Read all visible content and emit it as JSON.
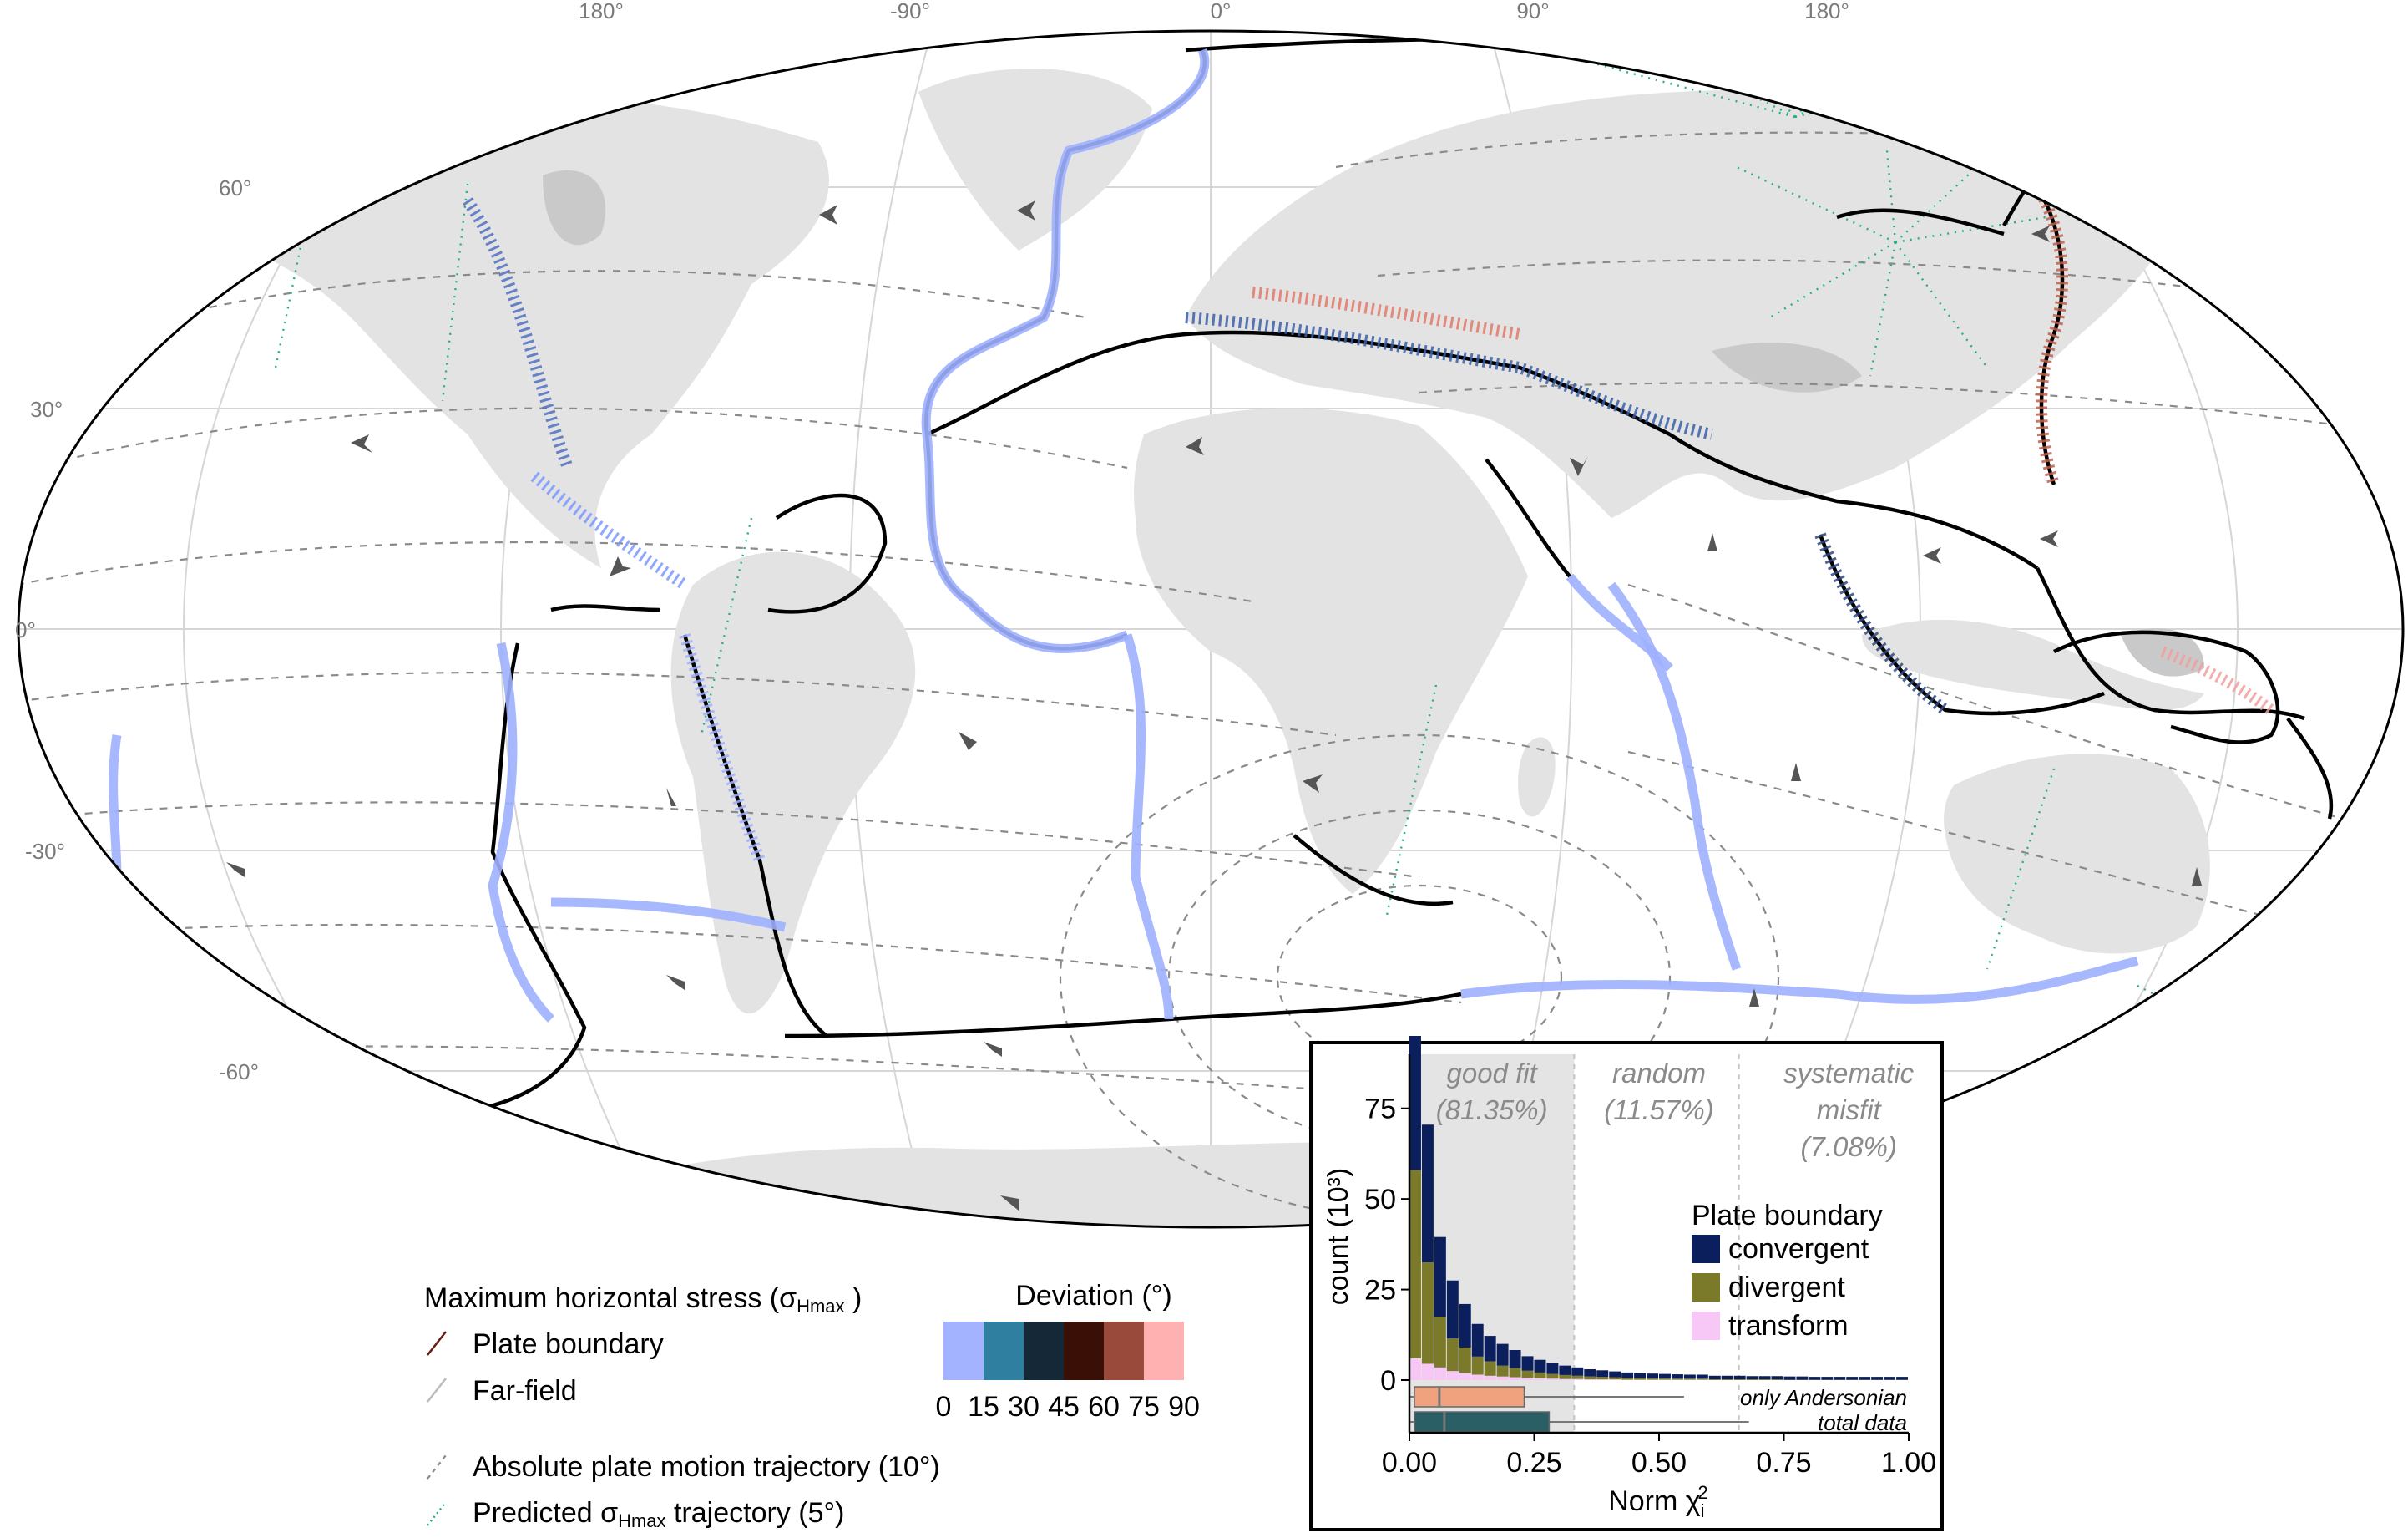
{
  "map": {
    "lon_labels": [
      "180°",
      "-90°",
      "0°",
      "90°",
      "180°"
    ],
    "lat_labels": [
      "60°",
      "30°",
      "0°",
      "-30°",
      "-60°"
    ],
    "colors": {
      "land": "#e3e3e3",
      "plate_boundary": "#000000",
      "ridge_stress": "#9fb0ff",
      "apm": "#8a8a8a",
      "predicted": "#22b08a"
    }
  },
  "legend": {
    "stress_title_main": "Maximum horizontal stress (σ",
    "stress_title_sub": "Hmax",
    "stress_title_end": " )",
    "plate_boundary": "Plate boundary",
    "far_field": "Far-field",
    "apm_label": "Absolute plate motion trajectory (10°)",
    "pred_main": "Predicted σ",
    "pred_sub": "Hmax",
    "pred_end": " trajectory (5°)",
    "deviation_title": "Deviation (°)",
    "deviation_ticks": [
      "0",
      "15",
      "30",
      "45",
      "60",
      "75",
      "90"
    ],
    "deviation_colors": [
      "#a3b3ff",
      "#2f7fa0",
      "#152838",
      "#3a0f05",
      "#9a4a3a",
      "#ffb0b0"
    ]
  },
  "chart_data": {
    "type": "bar",
    "xlabel_main": "Norm χ",
    "xlabel_sub": "i",
    "xlabel_sup": "2",
    "ylabel": "count (10³)",
    "xlim": [
      0,
      1
    ],
    "ylim": [
      0,
      95
    ],
    "xticks": [
      "0.00",
      "0.25",
      "0.50",
      "0.75",
      "1.00"
    ],
    "yticks": [
      "0",
      "25",
      "50",
      "75"
    ],
    "zones": [
      {
        "label1": "good fit",
        "label2": "(81.35%)",
        "range": [
          0,
          0.33
        ]
      },
      {
        "label1": "random",
        "label2": "(11.57%)",
        "range": [
          0.33,
          0.66
        ]
      },
      {
        "label1": "systematic",
        "label2": "misfit",
        "label3": "(7.08%)",
        "range": [
          0.66,
          1
        ]
      }
    ],
    "bin_width": 0.025,
    "series": [
      {
        "name": "convergent",
        "color": "#0b1f5c",
        "values": [
          95,
          38,
          22,
          16,
          12,
          9,
          7,
          6,
          5,
          4,
          3.5,
          3,
          2.6,
          2.3,
          2,
          1.8,
          1.6,
          1.5,
          1.4,
          1.3,
          1.2,
          1.2,
          1.1,
          1.1,
          1.0,
          1.0,
          1.0,
          0.9,
          0.9,
          0.9,
          0.9,
          0.9,
          0.8,
          0.8,
          0.8,
          0.8,
          0.8,
          0.8,
          0.8,
          0.8
        ]
      },
      {
        "name": "divergent",
        "color": "#7a7a2a",
        "values": [
          52,
          28,
          14,
          9,
          7,
          5,
          4,
          3,
          2.5,
          2,
          1.6,
          1.3,
          1.1,
          0.9,
          0.8,
          0.7,
          0.6,
          0.5,
          0.5,
          0.4,
          0.4,
          0.3,
          0.3,
          0.3,
          0.2,
          0.2,
          0.2,
          0.2,
          0.2,
          0.2,
          0.1,
          0.1,
          0.1,
          0.1,
          0.1,
          0.1,
          0.1,
          0.1,
          0.1,
          0.1
        ]
      },
      {
        "name": "transform",
        "color": "#f7c8f5",
        "values": [
          6,
          4.5,
          3.5,
          2.5,
          2,
          1.5,
          1.2,
          1,
          0.8,
          0.6,
          0.5,
          0.4,
          0.3,
          0.3,
          0.2,
          0.2,
          0.2,
          0.1,
          0.1,
          0.1,
          0.1,
          0.1,
          0.1,
          0.1,
          0,
          0,
          0,
          0,
          0,
          0,
          0,
          0,
          0,
          0,
          0,
          0,
          0,
          0,
          0,
          0
        ]
      }
    ],
    "legend_title": "Plate boundary",
    "boxplots": [
      {
        "name": "only Andersonian",
        "color": "#f0a27e",
        "whisker": [
          0,
          0.55
        ],
        "box": [
          0.01,
          0.23
        ],
        "median": 0.06
      },
      {
        "name": "total data",
        "color": "#2a5f66",
        "whisker": [
          0,
          0.68
        ],
        "box": [
          0.01,
          0.28
        ],
        "median": 0.07
      }
    ]
  }
}
